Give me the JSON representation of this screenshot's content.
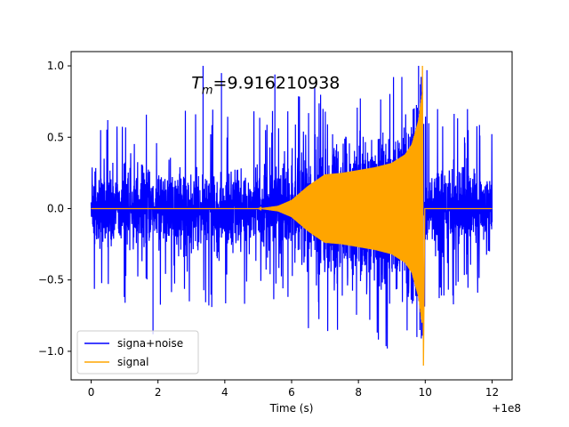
{
  "chart_data": {
    "type": "line",
    "title": "",
    "annotation": {
      "prefix": "T",
      "subscript": "m",
      "value": "=9.916210938",
      "x": 3.0,
      "y": 0.84
    },
    "xlabel": "Time (s)",
    "ylabel": "",
    "x_offset_label": "+1e8",
    "xlim": [
      -0.6,
      12.6
    ],
    "ylim": [
      -1.2,
      1.1
    ],
    "xticks": [
      0,
      2,
      4,
      6,
      8,
      10,
      12
    ],
    "yticks": [
      -1.0,
      -0.5,
      0.0,
      0.5,
      1.0
    ],
    "xtick_labels": [
      "0",
      "2",
      "4",
      "6",
      "8",
      "10",
      "12"
    ],
    "ytick_labels": [
      "−1.0",
      "−0.5",
      "0.0",
      "0.5",
      "1.0"
    ],
    "grid": false,
    "legend_position": "lower-left",
    "series": [
      {
        "name": "signa+noise",
        "color": "#0000ff",
        "x_range": [
          0,
          12
        ],
        "envelope_note": "dense noise ~±0.5 with spikes to ±1.0",
        "peak_max": 1.0,
        "peak_min": -0.88
      },
      {
        "name": "signal",
        "color": "#ffa500",
        "x_range": [
          0,
          12
        ],
        "chirp_end_time": 9.916210938,
        "envelope_points": [
          [
            0,
            0.0
          ],
          [
            5.0,
            0.0
          ],
          [
            5.6,
            0.02
          ],
          [
            6.0,
            0.06
          ],
          [
            6.5,
            0.16
          ],
          [
            7.0,
            0.24
          ],
          [
            7.5,
            0.25
          ],
          [
            8.0,
            0.27
          ],
          [
            8.5,
            0.29
          ],
          [
            9.0,
            0.32
          ],
          [
            9.4,
            0.38
          ],
          [
            9.6,
            0.45
          ],
          [
            9.8,
            0.62
          ],
          [
            9.9,
            0.8
          ]
        ],
        "peak_max": 1.0,
        "peak_min": -1.1
      }
    ]
  }
}
